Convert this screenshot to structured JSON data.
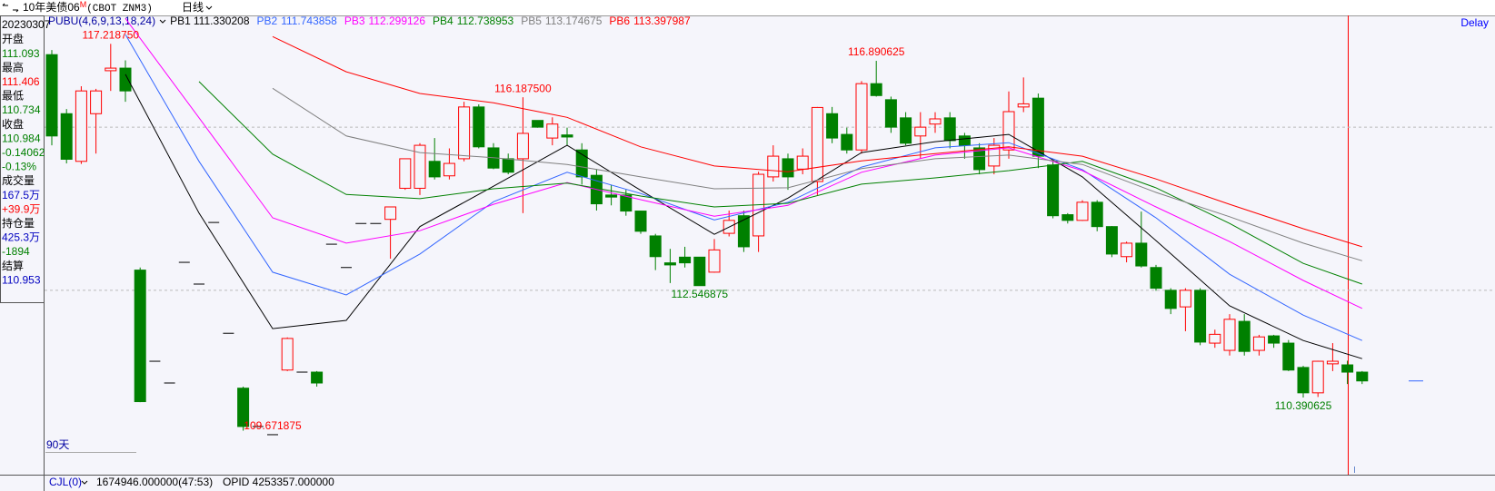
{
  "header": {
    "instrument": "10年美债06",
    "contract_flag": "M",
    "code": "(CBOT ZNM3)",
    "period": "日线",
    "status": "Delay"
  },
  "info_panel": {
    "date": "20230307",
    "rows": [
      {
        "text": "开盘",
        "color": "#000000"
      },
      {
        "text": "111.093",
        "color": "#008000"
      },
      {
        "text": "最高",
        "color": "#000000"
      },
      {
        "text": "111.406",
        "color": "#ff0000"
      },
      {
        "text": "最低",
        "color": "#000000"
      },
      {
        "text": "110.734",
        "color": "#008000"
      },
      {
        "text": "收盘",
        "color": "#000000"
      },
      {
        "text": "110.984",
        "color": "#008000"
      },
      {
        "text": "-0.14062",
        "color": "#008000"
      },
      {
        "text": "-0.13%",
        "color": "#008000"
      },
      {
        "text": "成交量",
        "color": "#000000"
      },
      {
        "text": "167.5万",
        "color": "#0000c0"
      },
      {
        "text": "+39.9万",
        "color": "#ff0000"
      },
      {
        "text": "持仓量",
        "color": "#000000"
      },
      {
        "text": "425.3万",
        "color": "#0000c0"
      },
      {
        "text": "-1894",
        "color": "#008000"
      },
      {
        "text": "结算",
        "color": "#000000"
      },
      {
        "text": "110.953",
        "color": "#0000c0"
      }
    ]
  },
  "range_label": "90天",
  "footer": {
    "indicator": "CJL(0)",
    "volume": "1674946.000000(47:53)",
    "open_interest": "OPID 4253357.000000"
  },
  "chart_data": {
    "type": "candlestick",
    "indicator": "PUBU(4,6,9,13,18,24)",
    "ylim": [
      108.9,
      117.75
    ],
    "grid_levels": [
      112.46,
      115.61
    ],
    "up_color": "#ff0000",
    "down_color": "#008000",
    "flat_color": "#000000",
    "open": [
      117.01,
      115.87,
      114.95,
      115.87,
      116.7,
      116.75,
      112.85,
      111.09,
      110.67,
      113.0,
      112.58,
      113.77,
      111.63,
      110.57,
      109.83,
      109.671875,
      110.92,
      110.88,
      110.88,
      113.35,
      112.9,
      113.75,
      113.75,
      113.83,
      114.43,
      114.43,
      114.95,
      114.67,
      115.0,
      116.0,
      115.21,
      115.0,
      115.0,
      115.74,
      115.4,
      115.46,
      115.17,
      114.68,
      114.3,
      114.3,
      113.99,
      113.51,
      112.99,
      113.1,
      113.1,
      112.81,
      113.56,
      113.9,
      113.51,
      114.65,
      115.0,
      114.8,
      114.56,
      115.87,
      115.47,
      115.17,
      116.45,
      116.14,
      115.79,
      115.44,
      115.67,
      115.79,
      115.44,
      115.21,
      114.86,
      115.17,
      116.0,
      116.17,
      114.88,
      113.92,
      113.81,
      114.16,
      113.69,
      113.11,
      113.37,
      112.9,
      112.46,
      112.14,
      112.46,
      111.44,
      111.3,
      111.86,
      111.3,
      111.58,
      111.44,
      110.97,
      110.48,
      111.04,
      111.02,
      110.88
    ],
    "high": [
      117.1,
      115.96,
      116.4,
      116.35,
      117.21875,
      116.9,
      112.9,
      111.09,
      110.67,
      113.0,
      112.58,
      113.77,
      111.63,
      110.6,
      109.83,
      109.671875,
      111.55,
      110.88,
      110.9,
      113.35,
      112.9,
      113.75,
      113.75,
      114.07,
      115.0,
      115.3,
      115.4,
      115.2,
      116.1,
      116.05,
      115.3,
      115.1,
      116.1875,
      115.74,
      115.8,
      115.6,
      115.3,
      114.8,
      114.5,
      114.4,
      114.0,
      113.55,
      113.26,
      113.3,
      113.1,
      113.45,
      114.0,
      114.0,
      114.75,
      115.26,
      115.1,
      115.2,
      116.0,
      116.0,
      115.6,
      116.5,
      116.890625,
      116.2,
      115.9,
      115.9,
      115.9,
      115.9,
      115.5,
      115.3,
      115.4,
      116.3,
      116.57,
      116.26,
      114.95,
      113.95,
      114.2,
      114.2,
      113.7,
      113.4,
      113.98,
      112.95,
      112.5,
      112.5,
      112.5,
      111.7,
      112.0,
      112.0,
      111.6,
      111.6,
      111.5,
      111.0,
      111.1,
      111.44,
      111.1,
      110.9
    ],
    "low": [
      115.26,
      114.91,
      114.9,
      115.1,
      116.31,
      116.1,
      110.3,
      111.09,
      110.67,
      113.0,
      112.58,
      113.77,
      111.63,
      109.75,
      109.83,
      109.671875,
      110.9,
      110.88,
      110.6,
      113.35,
      112.9,
      113.75,
      113.75,
      113.07,
      114.4,
      114.3,
      114.6,
      114.6,
      114.95,
      115.2,
      114.8,
      114.7,
      113.95,
      115.6,
      115.26,
      115.26,
      114.5,
      114.0,
      114.1,
      113.9,
      113.55,
      112.85,
      112.6,
      112.9,
      112.546875,
      112.8,
      113.5,
      113.2,
      113.2,
      114.56,
      114.4,
      114.7,
      114.3,
      115.3,
      115.1,
      115.1,
      116.2,
      115.5,
      115.26,
      115.0,
      115.5,
      115.2,
      115.0,
      114.7,
      114.7,
      115.0,
      115.9,
      114.82,
      113.85,
      113.75,
      113.8,
      113.6,
      113.1,
      113.0,
      112.9,
      112.45,
      112.0,
      111.67,
      111.4,
      111.35,
      111.2,
      111.2,
      111.2,
      111.35,
      110.9,
      110.390625,
      110.4,
      110.9,
      110.65,
      110.65
    ],
    "close": [
      115.44,
      114.99,
      116.31,
      116.31,
      116.75,
      116.31,
      110.31,
      111.09,
      110.67,
      113.0,
      112.58,
      113.77,
      111.63,
      109.83,
      109.83,
      109.671875,
      111.53,
      110.88,
      110.67,
      113.35,
      112.9,
      113.75,
      113.75,
      114.07,
      115.0,
      115.26,
      114.65,
      114.91,
      116.0,
      115.23,
      114.82,
      114.74,
      115.49,
      115.61,
      115.67,
      115.42,
      114.65,
      114.13,
      114.26,
      113.99,
      113.6,
      113.11,
      112.95,
      112.99,
      112.55,
      113.24,
      113.81,
      113.3,
      114.7,
      115.05,
      114.65,
      115.05,
      115.99,
      115.4,
      115.17,
      116.45,
      116.22,
      115.61,
      115.3,
      115.61,
      115.77,
      115.35,
      115.26,
      114.79,
      115.26,
      115.91,
      116.06,
      115.05,
      113.9,
      113.81,
      114.16,
      113.69,
      113.16,
      113.37,
      112.93,
      112.5,
      112.11,
      112.46,
      111.46,
      111.61,
      111.9,
      111.28,
      111.56,
      111.44,
      110.92,
      110.48,
      111.09,
      111.09,
      110.88,
      110.71
    ],
    "extreme_labels": [
      {
        "value": 117.21875,
        "label": "117.218750"
      },
      {
        "value": 116.1875,
        "label": "116.187500"
      },
      {
        "value": 116.890625,
        "label": "116.890625"
      },
      {
        "value": 112.546875,
        "label": "112.546875"
      },
      {
        "value": 110.390625,
        "label": "110.390625"
      },
      {
        "value": 109.671875,
        "label": "109.671875"
      }
    ],
    "ma_x": [
      5,
      10,
      15,
      20,
      25,
      30,
      35,
      40,
      45,
      50,
      55,
      60,
      65,
      70,
      75,
      80,
      85,
      89
    ],
    "series": [
      {
        "name": "PB1",
        "current": 111.330208,
        "color": "#000000",
        "values": [
          116.63,
          113.95,
          111.72,
          111.88,
          113.69,
          114.47,
          115.26,
          114.39,
          113.54,
          114.24,
          115.12,
          115.33,
          115.47,
          114.65,
          113.42,
          112.16,
          111.49,
          111.14
        ]
      },
      {
        "name": "PB2",
        "current": 111.743858,
        "color": "#3366ff",
        "values": [
          117.4,
          114.95,
          112.81,
          112.37,
          113.16,
          114.17,
          114.74,
          114.33,
          113.82,
          114.16,
          114.84,
          115.21,
          115.31,
          114.79,
          113.86,
          112.77,
          111.98,
          111.49
        ]
      },
      {
        "name": "PB3",
        "current": 112.299126,
        "color": "#ff00ff",
        "values": [
          117.71,
          115.79,
          113.86,
          113.37,
          113.61,
          114.12,
          114.54,
          114.21,
          113.89,
          114.1,
          114.74,
          115.07,
          115.21,
          114.77,
          114.07,
          113.4,
          112.65,
          112.11
        ]
      },
      {
        "name": "PB4",
        "current": 112.738953,
        "color": "#008000",
        "values": [
          null,
          116.49,
          115.09,
          114.31,
          114.23,
          114.42,
          114.53,
          114.28,
          114.07,
          114.14,
          114.51,
          114.63,
          114.77,
          114.95,
          114.44,
          113.75,
          112.98,
          112.58
        ]
      },
      {
        "name": "PB5",
        "current": 113.174675,
        "color": "#808080",
        "values": [
          null,
          null,
          116.36,
          115.44,
          115.12,
          115.02,
          114.89,
          114.65,
          114.42,
          114.44,
          114.81,
          115.0,
          115.07,
          114.89,
          114.35,
          113.88,
          113.37,
          113.03
        ]
      },
      {
        "name": "PB6",
        "current": 113.397987,
        "color": "#ff0000",
        "values": [
          null,
          null,
          117.36,
          116.68,
          116.26,
          116.08,
          115.8,
          115.23,
          114.86,
          114.75,
          114.96,
          115.1,
          115.23,
          115.05,
          114.61,
          114.12,
          113.65,
          113.3
        ]
      }
    ]
  }
}
